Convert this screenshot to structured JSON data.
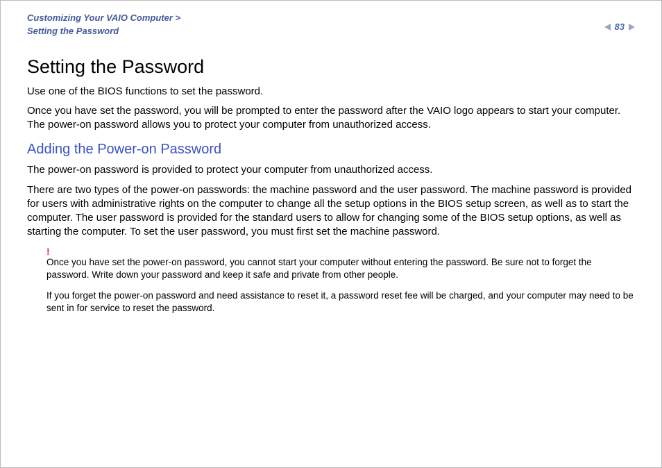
{
  "header": {
    "breadcrumb_line1": "Customizing Your VAIO Computer >",
    "breadcrumb_line2": "Setting the Password",
    "page_number": "83"
  },
  "main": {
    "title": "Setting the Password",
    "intro_p1": "Use one of the BIOS functions to set the password.",
    "intro_p2": "Once you have set the password, you will be prompted to enter the password after the VAIO logo appears to start your computer. The power-on password allows you to protect your computer from unauthorized access.",
    "subheading": "Adding the Power-on Password",
    "sub_p1": "The power-on password is provided to protect your computer from unauthorized access.",
    "sub_p2": "There are two types of the power-on passwords: the machine password and the user password. The machine password is provided for users with administrative rights on the computer to change all the setup options in the BIOS setup screen, as well as to start the computer. The user password is provided for the standard users to allow for changing some of the BIOS setup options, as well as starting the computer. To set the user password, you must first set the machine password.",
    "warning_mark": "!",
    "warning_p1": "Once you have set the power-on password, you cannot start your computer without entering the password. Be sure not to forget the password. Write down your password and keep it safe and private from other people.",
    "warning_p2": "If you forget the power-on password and need assistance to reset it, a password reset fee will be charged, and your computer may need to be sent in for service to reset the password."
  },
  "colors": {
    "breadcrumb": "#455a9a",
    "subheading": "#3a52c4",
    "warning": "#d23a2e",
    "arrow": "#9aa6c9",
    "text": "#000000",
    "background": "#ffffff"
  }
}
